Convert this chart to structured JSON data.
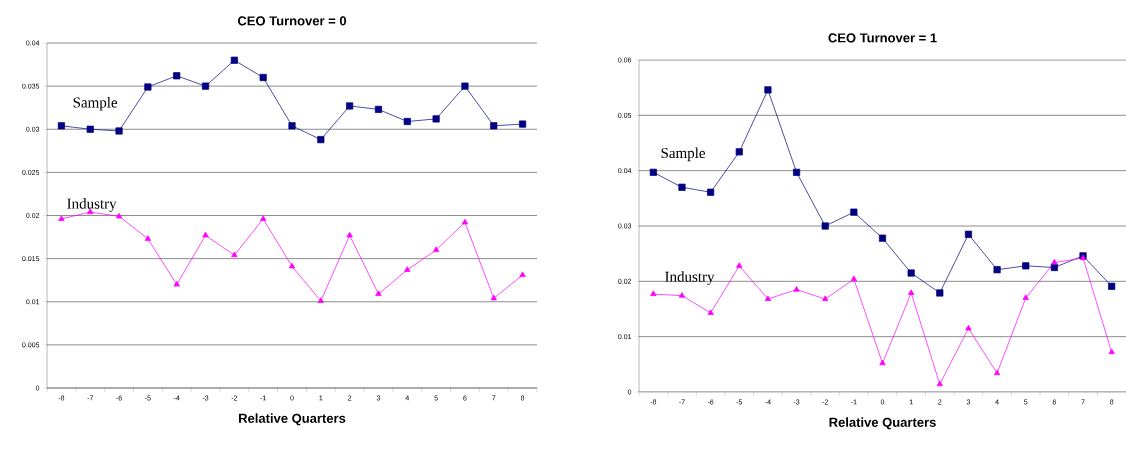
{
  "chart_data": [
    {
      "type": "line",
      "title": "CEO Turnover = 0",
      "xlabel": "Relative Quarters",
      "categories": [
        "-8",
        "-7",
        "-6",
        "-5",
        "-4",
        "-3",
        "-2",
        "-1",
        "0",
        "1",
        "2",
        "3",
        "4",
        "5",
        "6",
        "7",
        "8"
      ],
      "series": [
        {
          "name": "Sample",
          "color": "#000080",
          "marker": "square",
          "values": [
            0.0304,
            0.03,
            0.0298,
            0.0349,
            0.0362,
            0.035,
            0.038,
            0.036,
            0.0304,
            0.0288,
            0.0327,
            0.0323,
            0.0309,
            0.0312,
            0.035,
            0.0304,
            0.0306
          ]
        },
        {
          "name": "Industry",
          "color": "#ff00ff",
          "marker": "triangle",
          "values": [
            0.0196,
            0.0204,
            0.0199,
            0.0173,
            0.012,
            0.0177,
            0.0154,
            0.0196,
            0.0141,
            0.0101,
            0.0177,
            0.0109,
            0.0137,
            0.016,
            0.0192,
            0.0104,
            0.0131
          ]
        }
      ],
      "ylim": [
        0,
        0.04
      ],
      "yticks": [
        0,
        0.005,
        0.01,
        0.015,
        0.02,
        0.025,
        0.03,
        0.035,
        0.04
      ],
      "grid": "y"
    },
    {
      "type": "line",
      "title": "CEO Turnover = 1",
      "xlabel": "Relative Quarters",
      "categories": [
        "-8",
        "-7",
        "-6",
        "-5",
        "-4",
        "-3",
        "-2",
        "-1",
        "0",
        "1",
        "2",
        "3",
        "4",
        "5",
        "6",
        "7",
        "8"
      ],
      "series": [
        {
          "name": "Sample",
          "color": "#000080",
          "marker": "square",
          "values": [
            0.0397,
            0.037,
            0.0361,
            0.0434,
            0.0546,
            0.0397,
            0.03,
            0.0325,
            0.0278,
            0.0215,
            0.0179,
            0.0285,
            0.0221,
            0.0228,
            0.0225,
            0.0246,
            0.0191
          ]
        },
        {
          "name": "Industry",
          "color": "#ff00ff",
          "marker": "triangle",
          "values": [
            0.0177,
            0.0174,
            0.0143,
            0.0228,
            0.0168,
            0.0185,
            0.0168,
            0.0204,
            0.0052,
            0.0179,
            0.0014,
            0.0115,
            0.0034,
            0.017,
            0.0234,
            0.0242,
            0.0072
          ]
        }
      ],
      "ylim": [
        0,
        0.06
      ],
      "yticks": [
        0,
        0.01,
        0.02,
        0.03,
        0.04,
        0.05,
        0.06
      ],
      "grid": "y"
    }
  ]
}
